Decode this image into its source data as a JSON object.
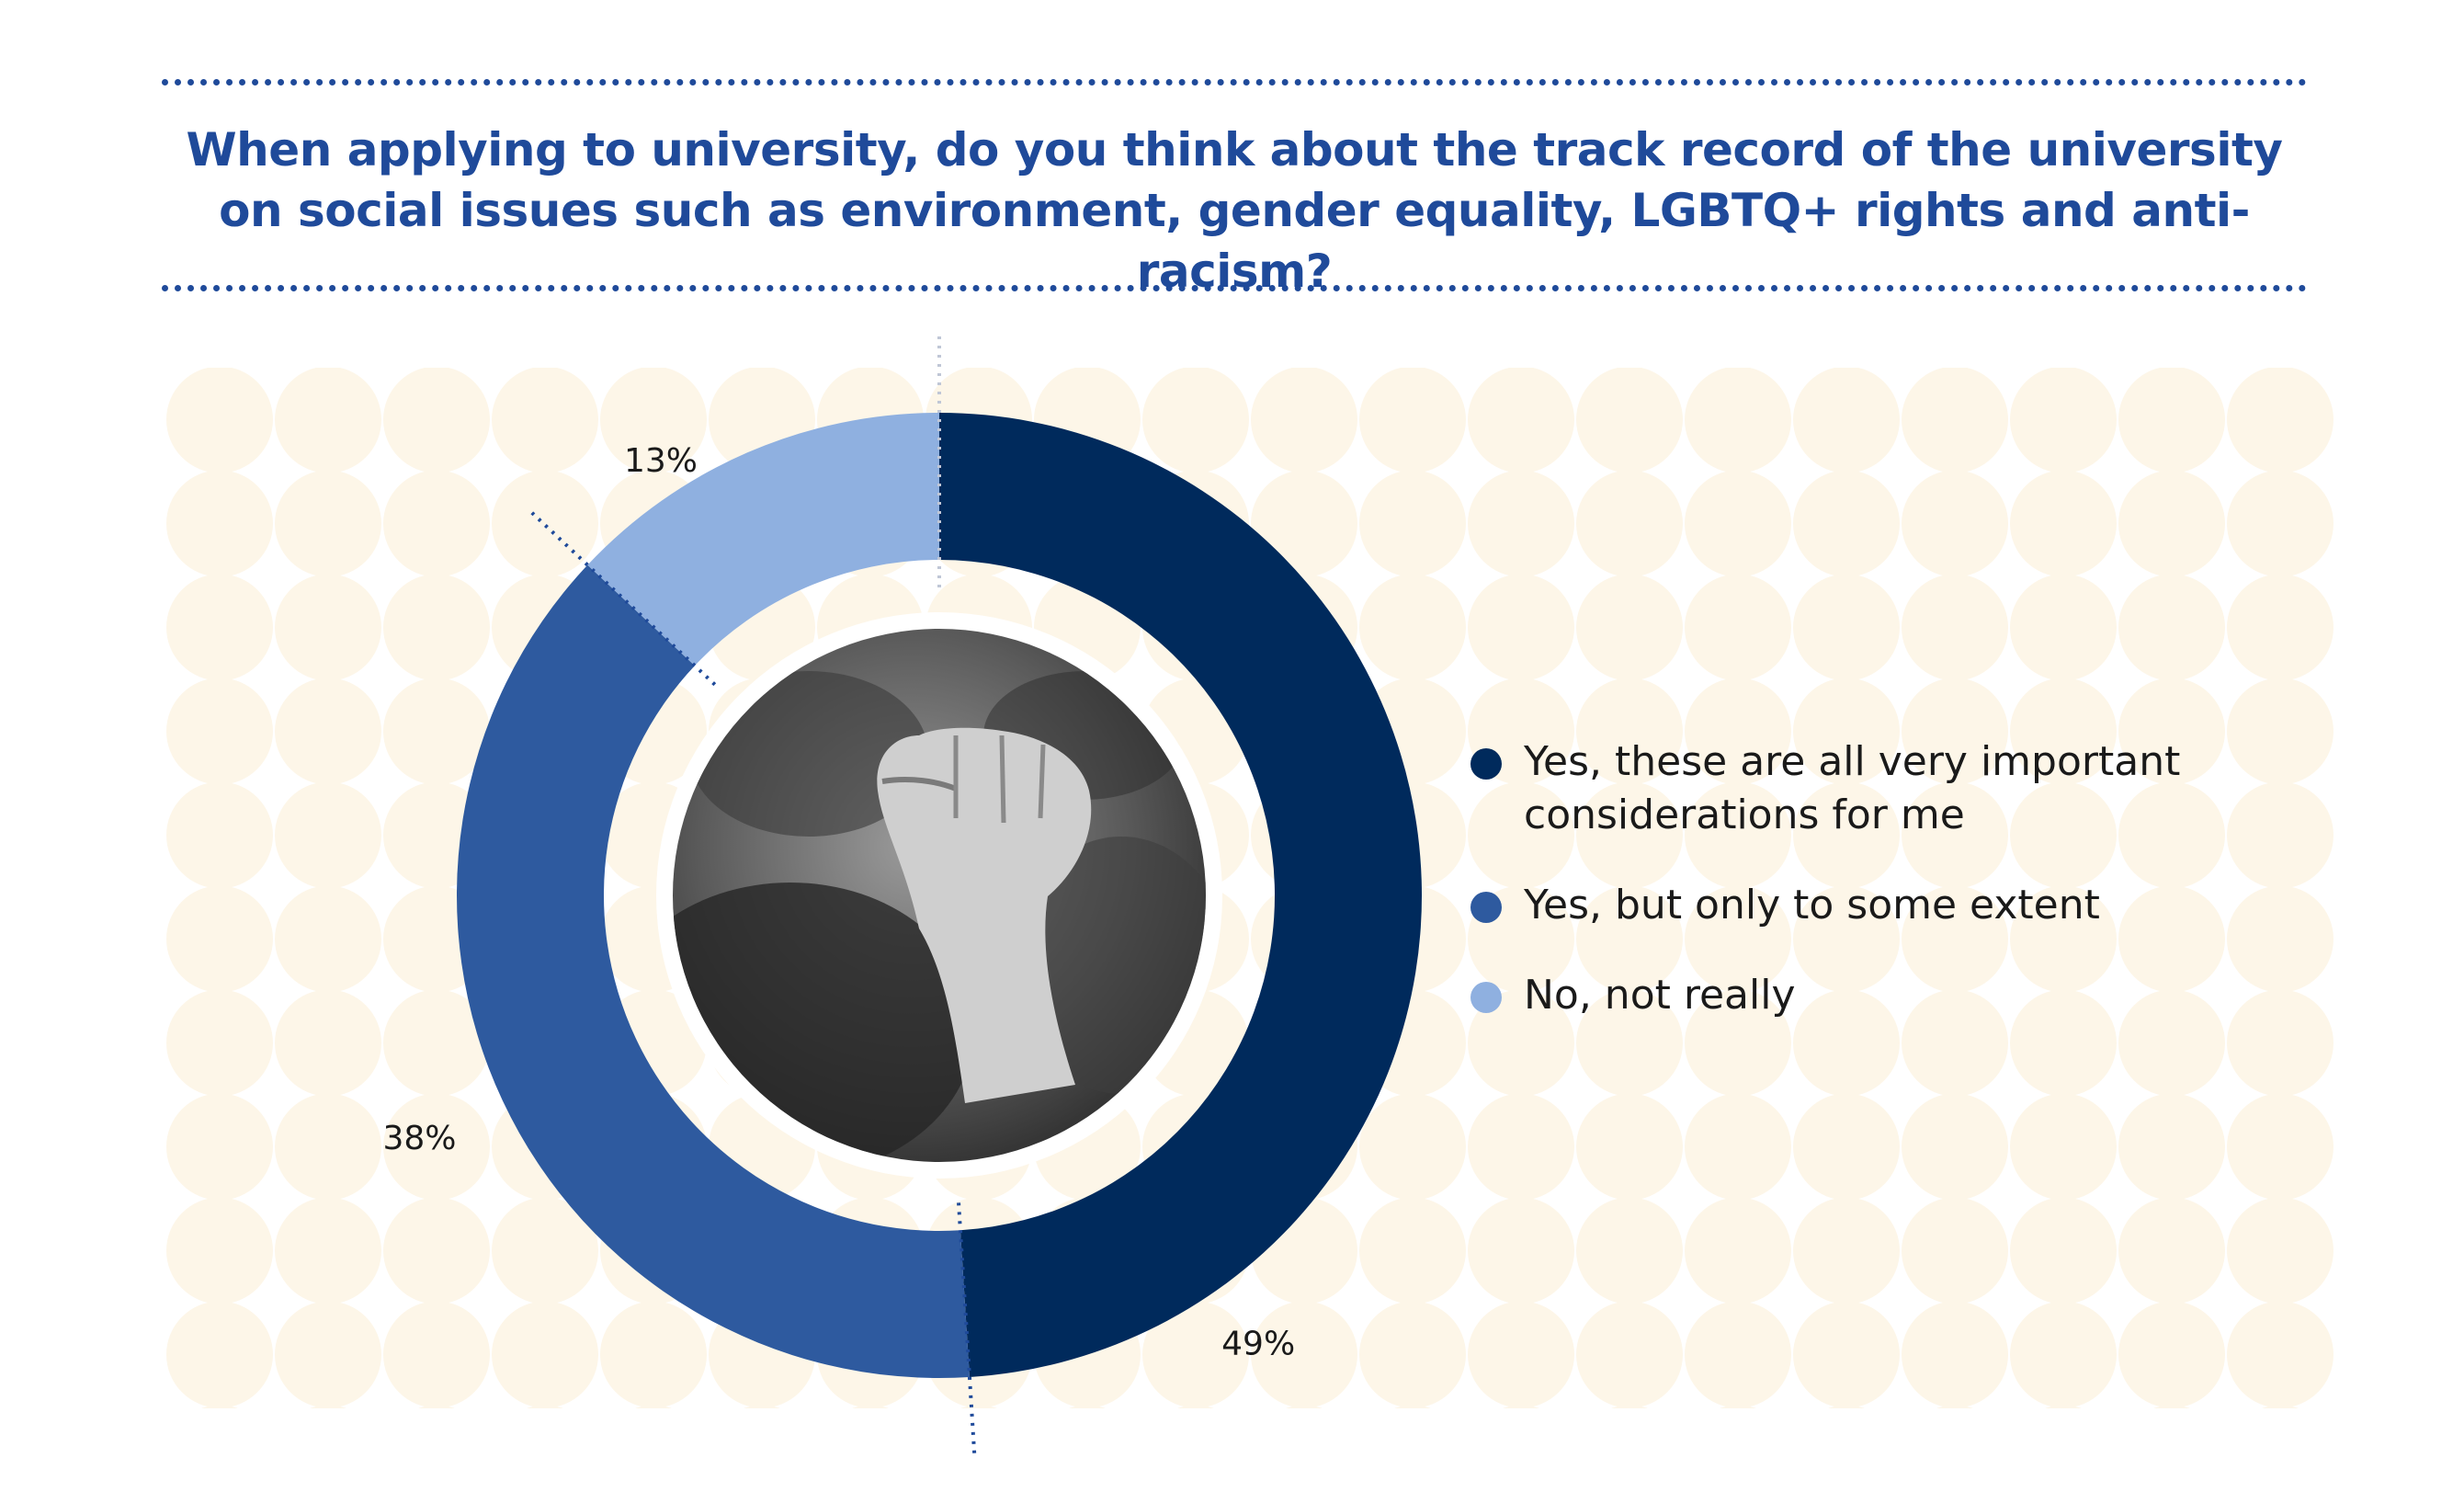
{
  "title": "When applying to university, do you think about the track record of the university on social issues such as environment, gender equality, LGBTQ+ rights and anti-racism?",
  "colors": {
    "title": "#1f4a9a",
    "background_pattern": "#fdf6e8",
    "segment_yes_all": "#002a5c",
    "segment_yes_some": "#2e5a9f",
    "segment_no": "#8fb0e0"
  },
  "chart_data": {
    "type": "pie",
    "variant": "donut",
    "title": "When applying to university, do you think about the track record of the university on social issues such as environment, gender equality, LGBTQ+ rights and anti-racism?",
    "categories": [
      "Yes, these are all very important considerations for me",
      "Yes, but only to some extent",
      "No, not really"
    ],
    "values": [
      49,
      38,
      13
    ],
    "labels": [
      "49%",
      "38%",
      "13%"
    ],
    "colors": [
      "#002a5c",
      "#2e5a9f",
      "#8fb0e0"
    ],
    "legend_position": "right",
    "center_icon": "raised-fist-photo"
  },
  "legend": {
    "items": [
      {
        "label": "Yes, these are all very important considerations for me",
        "color": "#002a5c"
      },
      {
        "label": "Yes, but only to some extent",
        "color": "#2e5a9f"
      },
      {
        "label": "No, not really",
        "color": "#8fb0e0"
      }
    ]
  }
}
